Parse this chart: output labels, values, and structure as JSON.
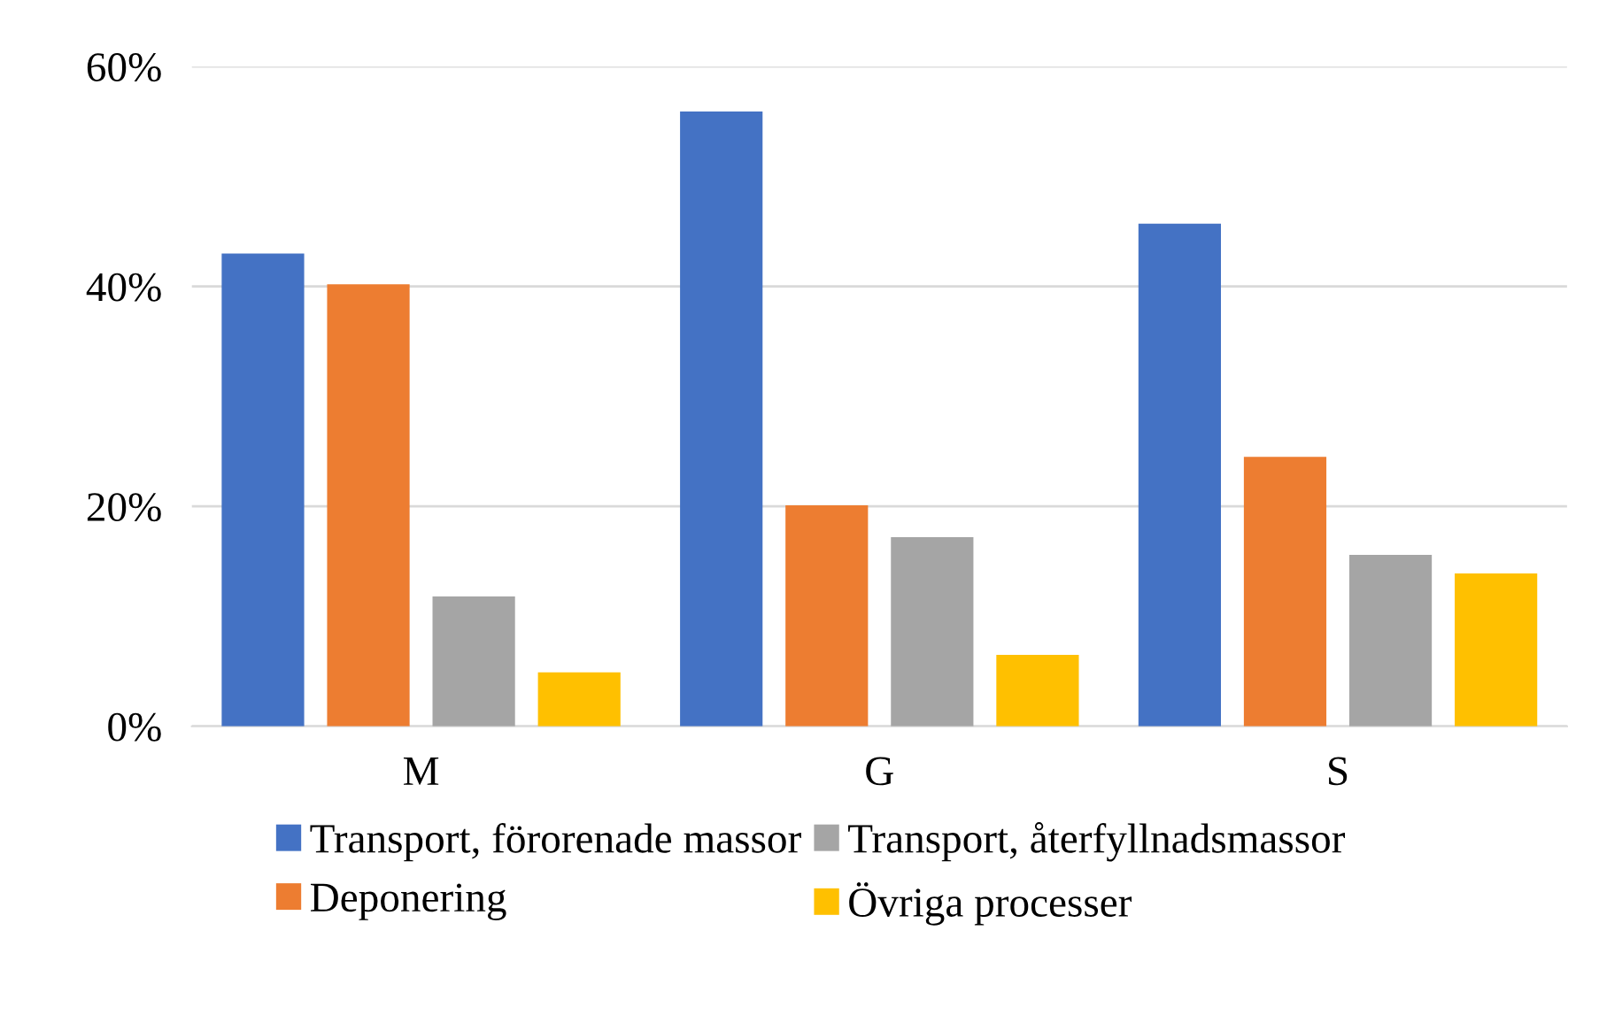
{
  "chart_data": {
    "type": "bar",
    "categories": [
      "M",
      "G",
      "S"
    ],
    "series": [
      {
        "name": "Transport, förorenade massor",
        "color": "#4472c4",
        "values": [
          43.0,
          55.9,
          45.7
        ]
      },
      {
        "name": "Deponering",
        "color": "#ed7d31",
        "values": [
          40.2,
          20.1,
          24.5
        ]
      },
      {
        "name": "Transport, återfyllnadsmassor",
        "color": "#a5a5a5",
        "values": [
          11.8,
          17.2,
          15.6
        ]
      },
      {
        "name": "Övriga processer",
        "color": "#ffc000",
        "values": [
          4.9,
          6.5,
          13.9
        ]
      }
    ],
    "ylim": [
      0,
      60
    ],
    "yticks": [
      {
        "value": 0,
        "label": "0%"
      },
      {
        "value": 20,
        "label": "20%"
      },
      {
        "value": 40,
        "label": "40%"
      },
      {
        "value": 60,
        "label": "60%"
      }
    ],
    "grid": "y",
    "legend": "bottom"
  }
}
